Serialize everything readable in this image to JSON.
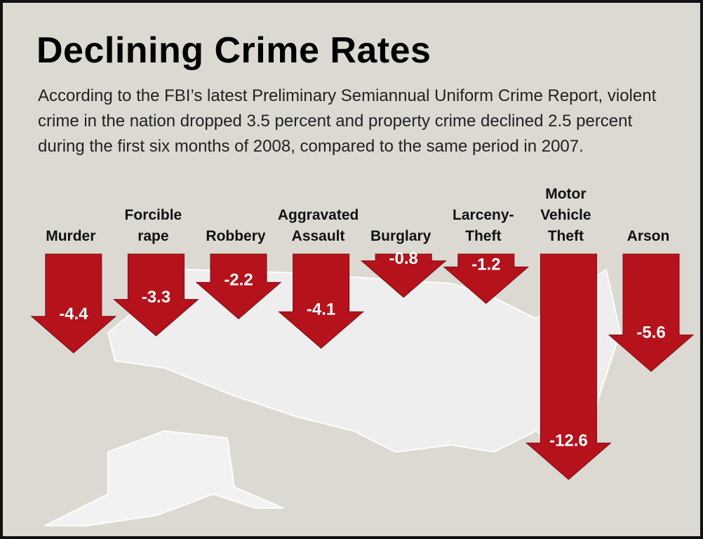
{
  "chart_data": {
    "type": "bar",
    "title": "Declining Crime Rates",
    "subtitle": "According to the FBI’s latest Preliminary Semiannual Uniform Crime Report, violent crime in the nation dropped 3.5 percent and property crime declined 2.5 percent during the first six months of 2008, compared to the same period in 2007.",
    "categories": [
      "Murder",
      "Forcible rape",
      "Robbery",
      "Aggravated Assault",
      "Burglary",
      "Larceny-Theft",
      "Motor Vehicle Theft",
      "Arson"
    ],
    "values": [
      -4.4,
      -3.3,
      -2.2,
      -4.1,
      -0.8,
      -1.2,
      -12.6,
      -5.6
    ],
    "color": "#b5121b"
  }
}
